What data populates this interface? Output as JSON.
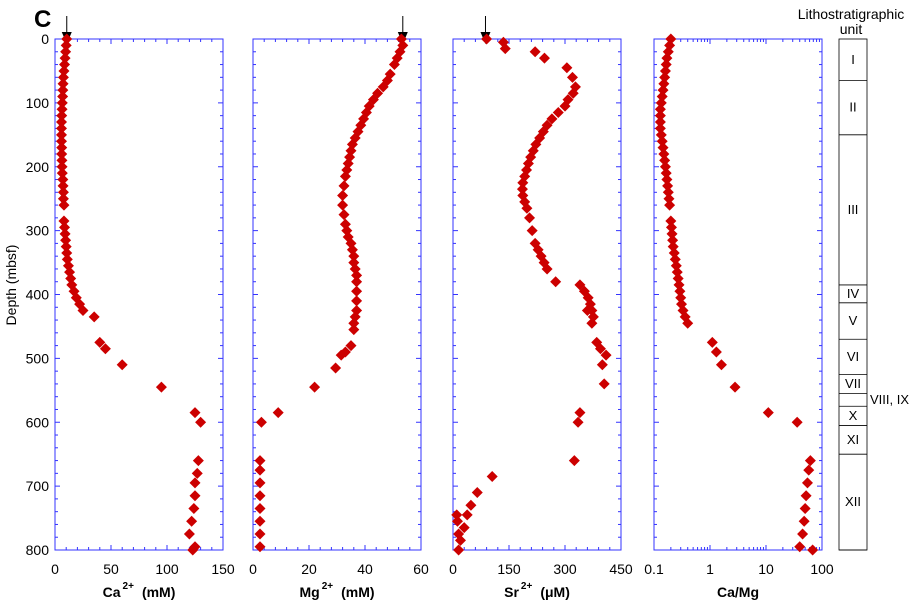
{
  "panel_label": "C",
  "litho": {
    "header_line1": "Lithostratigraphic",
    "header_line2": "unit",
    "units": [
      {
        "label": "I",
        "top": 0,
        "bottom": 65
      },
      {
        "label": "II",
        "top": 65,
        "bottom": 150
      },
      {
        "label": "III",
        "top": 150,
        "bottom": 385
      },
      {
        "label": "IV",
        "top": 385,
        "bottom": 413
      },
      {
        "label": "V",
        "top": 413,
        "bottom": 470
      },
      {
        "label": "VI",
        "top": 470,
        "bottom": 525
      },
      {
        "label": "VII",
        "top": 525,
        "bottom": 555
      },
      {
        "label": "VIII, IX",
        "top": 555,
        "bottom": 575
      },
      {
        "label": "X",
        "top": 575,
        "bottom": 605
      },
      {
        "label": "XI",
        "top": 605,
        "bottom": 650
      },
      {
        "label": "XII",
        "top": 650,
        "bottom": 800
      }
    ]
  },
  "chart_data": [
    {
      "type": "scatter",
      "ylabel": "Depth (mbsf)",
      "ylim": [
        800,
        0
      ],
      "yticks": [
        0,
        100,
        200,
        300,
        400,
        500,
        600,
        700,
        800
      ],
      "xlabel": {
        "main": "Ca",
        "sup": "2+",
        "unit": "(mM)"
      },
      "xlim": [
        0,
        150
      ],
      "xticks": [
        0,
        50,
        100,
        150
      ],
      "xscale": "linear",
      "seawater_arrow": 10.5,
      "x": [
        10.5,
        10,
        9.5,
        9,
        8.5,
        8,
        7.5,
        7.2,
        7,
        6.8,
        6.5,
        6.3,
        6,
        5.8,
        5.8,
        5.8,
        5.8,
        6,
        6,
        6.2,
        6.3,
        6.5,
        7,
        7.2,
        7.5,
        7.5,
        8,
        8,
        8.5,
        9,
        9.5,
        10,
        10.5,
        11,
        12,
        13,
        14,
        15,
        17,
        19,
        22,
        25,
        35,
        40,
        45,
        60,
        95,
        125,
        130,
        128,
        127,
        125,
        125,
        124,
        122,
        120,
        125,
        123
      ],
      "y": [
        0,
        10,
        20,
        30,
        40,
        50,
        60,
        70,
        80,
        90,
        100,
        110,
        120,
        130,
        140,
        150,
        160,
        170,
        180,
        190,
        200,
        210,
        220,
        230,
        240,
        250,
        260,
        285,
        295,
        305,
        315,
        325,
        335,
        345,
        355,
        365,
        375,
        385,
        395,
        405,
        415,
        425,
        435,
        475,
        485,
        510,
        545,
        585,
        600,
        660,
        680,
        695,
        715,
        735,
        755,
        775,
        795,
        800
      ]
    },
    {
      "type": "scatter",
      "xlabel": {
        "main": "Mg",
        "sup": "2+",
        "unit": "(mM)"
      },
      "xlim": [
        0,
        60
      ],
      "xticks": [
        0,
        20,
        40,
        60
      ],
      "xscale": "linear",
      "seawater_arrow": 53.5,
      "x": [
        53,
        53.5,
        52.5,
        51.5,
        50.5,
        49,
        48,
        46.5,
        44.5,
        43,
        41.5,
        40.5,
        39.5,
        38.5,
        37.5,
        36.5,
        35.5,
        35,
        34.5,
        34,
        33.5,
        33,
        32.5,
        32,
        32,
        32.5,
        33,
        33.5,
        34,
        35,
        35.5,
        36,
        36,
        36.5,
        37,
        37,
        37,
        37,
        37,
        36.5,
        36,
        36,
        35,
        33,
        31.5,
        29.5,
        22,
        9,
        3,
        2.5,
        2.5,
        2.5,
        2.5,
        2.5,
        2.5,
        2.5,
        2.5
      ],
      "y": [
        0,
        10,
        20,
        30,
        40,
        55,
        65,
        75,
        85,
        95,
        105,
        115,
        125,
        135,
        145,
        155,
        165,
        175,
        185,
        195,
        205,
        215,
        230,
        245,
        260,
        275,
        290,
        300,
        310,
        320,
        330,
        340,
        350,
        360,
        370,
        380,
        395,
        410,
        425,
        435,
        445,
        455,
        480,
        490,
        495,
        515,
        545,
        585,
        600,
        660,
        675,
        695,
        715,
        735,
        755,
        775,
        795
      ]
    },
    {
      "type": "scatter",
      "xlabel": {
        "main": "Sr",
        "sup": "2+",
        "unit": "(μM)"
      },
      "xlim": [
        0,
        450
      ],
      "xticks": [
        0,
        150,
        300,
        450
      ],
      "xscale": "linear",
      "seawater_arrow": 87,
      "x": [
        90,
        135,
        140,
        220,
        245,
        305,
        320,
        328,
        322,
        308,
        300,
        282,
        265,
        252,
        242,
        232,
        222,
        215,
        208,
        202,
        197,
        192,
        187,
        186,
        187,
        192,
        198,
        205,
        212,
        220,
        228,
        236,
        244,
        252,
        275,
        340,
        352,
        362,
        368,
        372,
        376,
        372,
        360,
        385,
        395,
        410,
        400,
        405,
        340,
        335,
        325,
        105,
        65,
        48,
        38,
        30,
        20,
        15,
        15,
        12,
        10
      ],
      "y": [
        0,
        5,
        15,
        20,
        30,
        45,
        60,
        75,
        85,
        95,
        105,
        115,
        125,
        135,
        145,
        155,
        165,
        175,
        185,
        195,
        205,
        215,
        225,
        235,
        245,
        255,
        265,
        280,
        300,
        320,
        330,
        340,
        350,
        360,
        380,
        385,
        395,
        405,
        415,
        425,
        435,
        445,
        425,
        475,
        485,
        495,
        510,
        540,
        585,
        600,
        660,
        685,
        710,
        730,
        745,
        765,
        785,
        800,
        775,
        755,
        745
      ]
    },
    {
      "type": "scatter",
      "xlabel": {
        "main": "Ca/Mg",
        "sup": "",
        "unit": ""
      },
      "xlim": [
        0.1,
        100
      ],
      "xticks": [
        0.1,
        1,
        10,
        100
      ],
      "xtick_labels": [
        "0.1",
        "1",
        "10",
        "100"
      ],
      "xscale": "log",
      "x": [
        0.2,
        0.19,
        0.18,
        0.17,
        0.165,
        0.16,
        0.155,
        0.15,
        0.145,
        0.14,
        0.135,
        0.13,
        0.13,
        0.13,
        0.13,
        0.135,
        0.14,
        0.145,
        0.15,
        0.155,
        0.16,
        0.165,
        0.17,
        0.175,
        0.18,
        0.185,
        0.19,
        0.2,
        0.205,
        0.21,
        0.215,
        0.22,
        0.23,
        0.24,
        0.25,
        0.26,
        0.27,
        0.28,
        0.29,
        0.3,
        0.31,
        0.33,
        0.36,
        0.4,
        1.1,
        1.3,
        1.6,
        2.8,
        11,
        36,
        62,
        58,
        55,
        52,
        50,
        48,
        45,
        40,
        68
      ],
      "y": [
        0,
        10,
        20,
        30,
        40,
        50,
        60,
        70,
        80,
        90,
        100,
        110,
        120,
        130,
        140,
        150,
        160,
        170,
        180,
        190,
        200,
        210,
        220,
        230,
        240,
        250,
        260,
        285,
        295,
        305,
        315,
        325,
        335,
        345,
        355,
        365,
        375,
        385,
        395,
        405,
        415,
        425,
        435,
        445,
        475,
        490,
        510,
        545,
        585,
        600,
        660,
        675,
        695,
        715,
        735,
        755,
        775,
        795,
        800
      ]
    }
  ]
}
